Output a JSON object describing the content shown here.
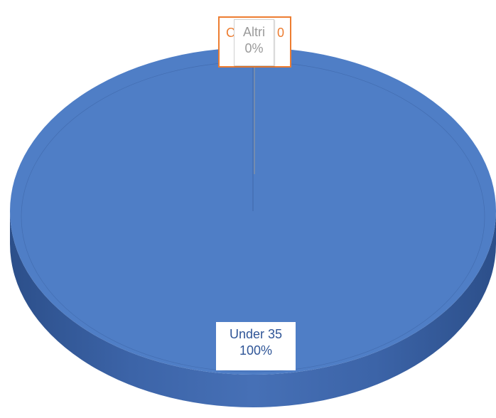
{
  "chart_data": {
    "type": "pie",
    "variant": "3d",
    "title": "",
    "slices": [
      {
        "label": "Under 35",
        "value": 100,
        "percent_label": "100%",
        "color": "#4f7ec6"
      },
      {
        "label": "Altri",
        "value": 0,
        "percent_label": "0%",
        "color": "#ed7d31"
      }
    ],
    "hidden_label_fragments": [
      "C",
      "0"
    ],
    "label_text_colors": {
      "Under 35": "#2f5597",
      "Altri": "#9a9a9a",
      "fragments": "#ed7d31"
    },
    "leader_line_color": "#9a9a9a",
    "legend": "none"
  }
}
